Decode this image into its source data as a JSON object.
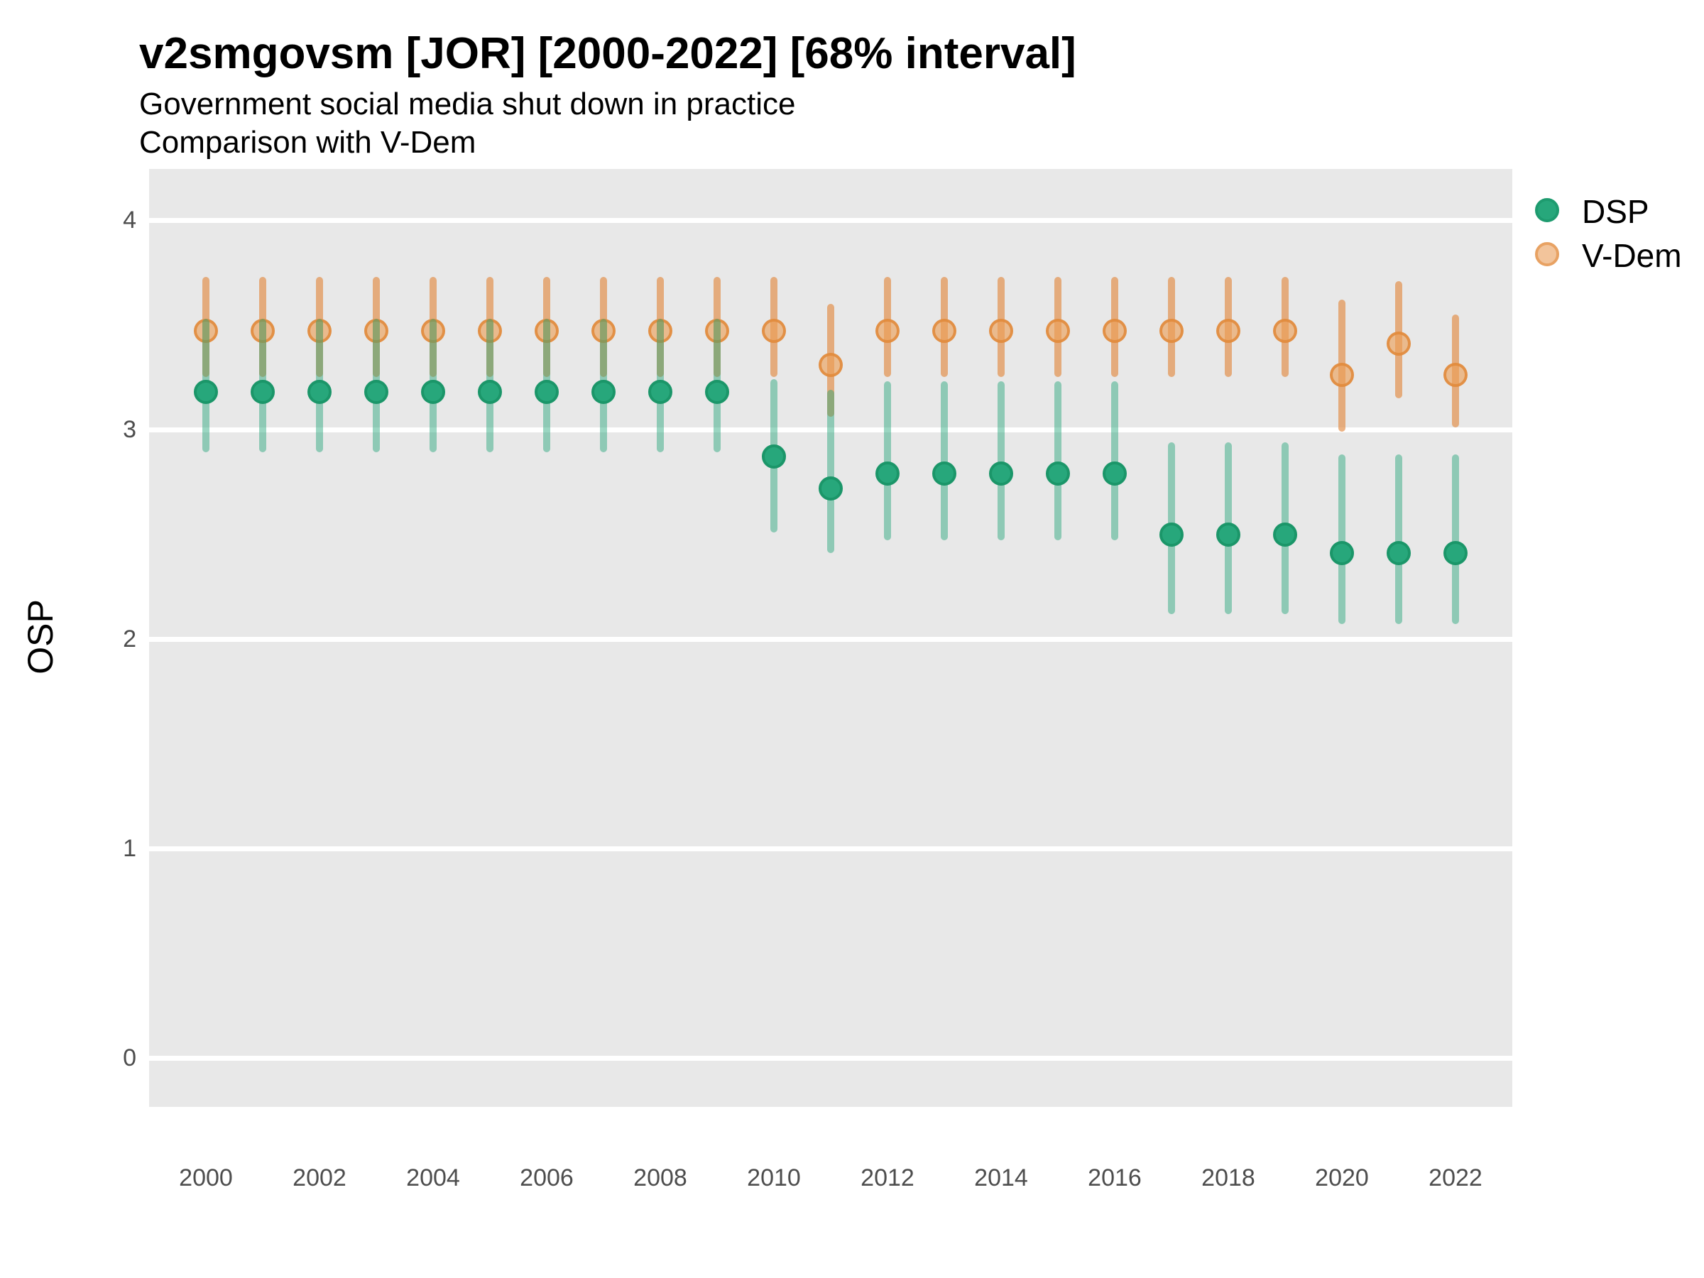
{
  "title": "v2smgovsm [JOR] [2000-2022] [68% interval]",
  "subtitle1": "Government social media shut down in practice",
  "subtitle2": "Comparison with V-Dem",
  "ylabel": "OSP",
  "legend": {
    "items": [
      {
        "label": "DSP",
        "color": "#27A77B"
      },
      {
        "label": "V-Dem",
        "color": "#F2C49B"
      }
    ]
  },
  "colors": {
    "dsp_point": "#27A77B",
    "dsp_point_ring": "#1B9669",
    "dsp_bar": "rgba(34,163,119,0.45)",
    "vdem_point": "#ECAF7E",
    "vdem_point_ring": "#E29A56",
    "vdem_bar": "rgba(226,139,66,0.65)",
    "panel_background": "#E8E8E8",
    "gridline": "#FFFFFF"
  },
  "chart_data": {
    "type": "pointrange",
    "title": "v2smgovsm [JOR] [2000-2022] [68% interval]",
    "subtitle": "Government social media shut down in practice — Comparison with V-Dem",
    "interval": "68%",
    "xlabel": "",
    "ylabel": "OSP",
    "ylim": [
      -0.21,
      4.24
    ],
    "yticks": [
      0,
      1,
      2,
      3,
      4
    ],
    "xticks": [
      2000,
      2002,
      2004,
      2006,
      2008,
      2010,
      2012,
      2014,
      2016,
      2018,
      2020,
      2022
    ],
    "grid": "major-horizontal-white-on-gray",
    "legend_position": "right",
    "x": [
      2000,
      2001,
      2002,
      2003,
      2004,
      2005,
      2006,
      2007,
      2008,
      2009,
      2010,
      2011,
      2012,
      2013,
      2014,
      2015,
      2016,
      2017,
      2018,
      2019,
      2020,
      2021,
      2022
    ],
    "series": [
      {
        "name": "DSP",
        "est": [
          3.18,
          3.18,
          3.18,
          3.18,
          3.18,
          3.18,
          3.18,
          3.18,
          3.18,
          3.18,
          2.87,
          2.72,
          2.79,
          2.79,
          2.79,
          2.79,
          2.79,
          2.5,
          2.5,
          2.5,
          2.41,
          2.41,
          2.41
        ],
        "lo": [
          2.89,
          2.89,
          2.89,
          2.89,
          2.89,
          2.89,
          2.89,
          2.89,
          2.89,
          2.89,
          2.51,
          2.41,
          2.47,
          2.47,
          2.47,
          2.47,
          2.47,
          2.12,
          2.12,
          2.12,
          2.07,
          2.07,
          2.07
        ],
        "hi": [
          3.53,
          3.53,
          3.53,
          3.53,
          3.53,
          3.53,
          3.53,
          3.53,
          3.53,
          3.53,
          3.24,
          3.19,
          3.23,
          3.23,
          3.23,
          3.23,
          3.23,
          2.94,
          2.94,
          2.94,
          2.88,
          2.88,
          2.88
        ]
      },
      {
        "name": "V-Dem",
        "est": [
          3.47,
          3.47,
          3.47,
          3.47,
          3.47,
          3.47,
          3.47,
          3.47,
          3.47,
          3.47,
          3.47,
          3.31,
          3.47,
          3.47,
          3.47,
          3.47,
          3.47,
          3.47,
          3.47,
          3.47,
          3.26,
          3.41,
          3.26
        ],
        "lo": [
          3.25,
          3.25,
          3.25,
          3.25,
          3.25,
          3.25,
          3.25,
          3.25,
          3.25,
          3.25,
          3.25,
          3.06,
          3.25,
          3.25,
          3.25,
          3.25,
          3.25,
          3.25,
          3.25,
          3.25,
          2.99,
          3.15,
          3.01
        ],
        "hi": [
          3.73,
          3.73,
          3.73,
          3.73,
          3.73,
          3.73,
          3.73,
          3.73,
          3.73,
          3.73,
          3.73,
          3.6,
          3.73,
          3.73,
          3.73,
          3.73,
          3.73,
          3.73,
          3.73,
          3.73,
          3.62,
          3.71,
          3.55
        ]
      }
    ]
  }
}
